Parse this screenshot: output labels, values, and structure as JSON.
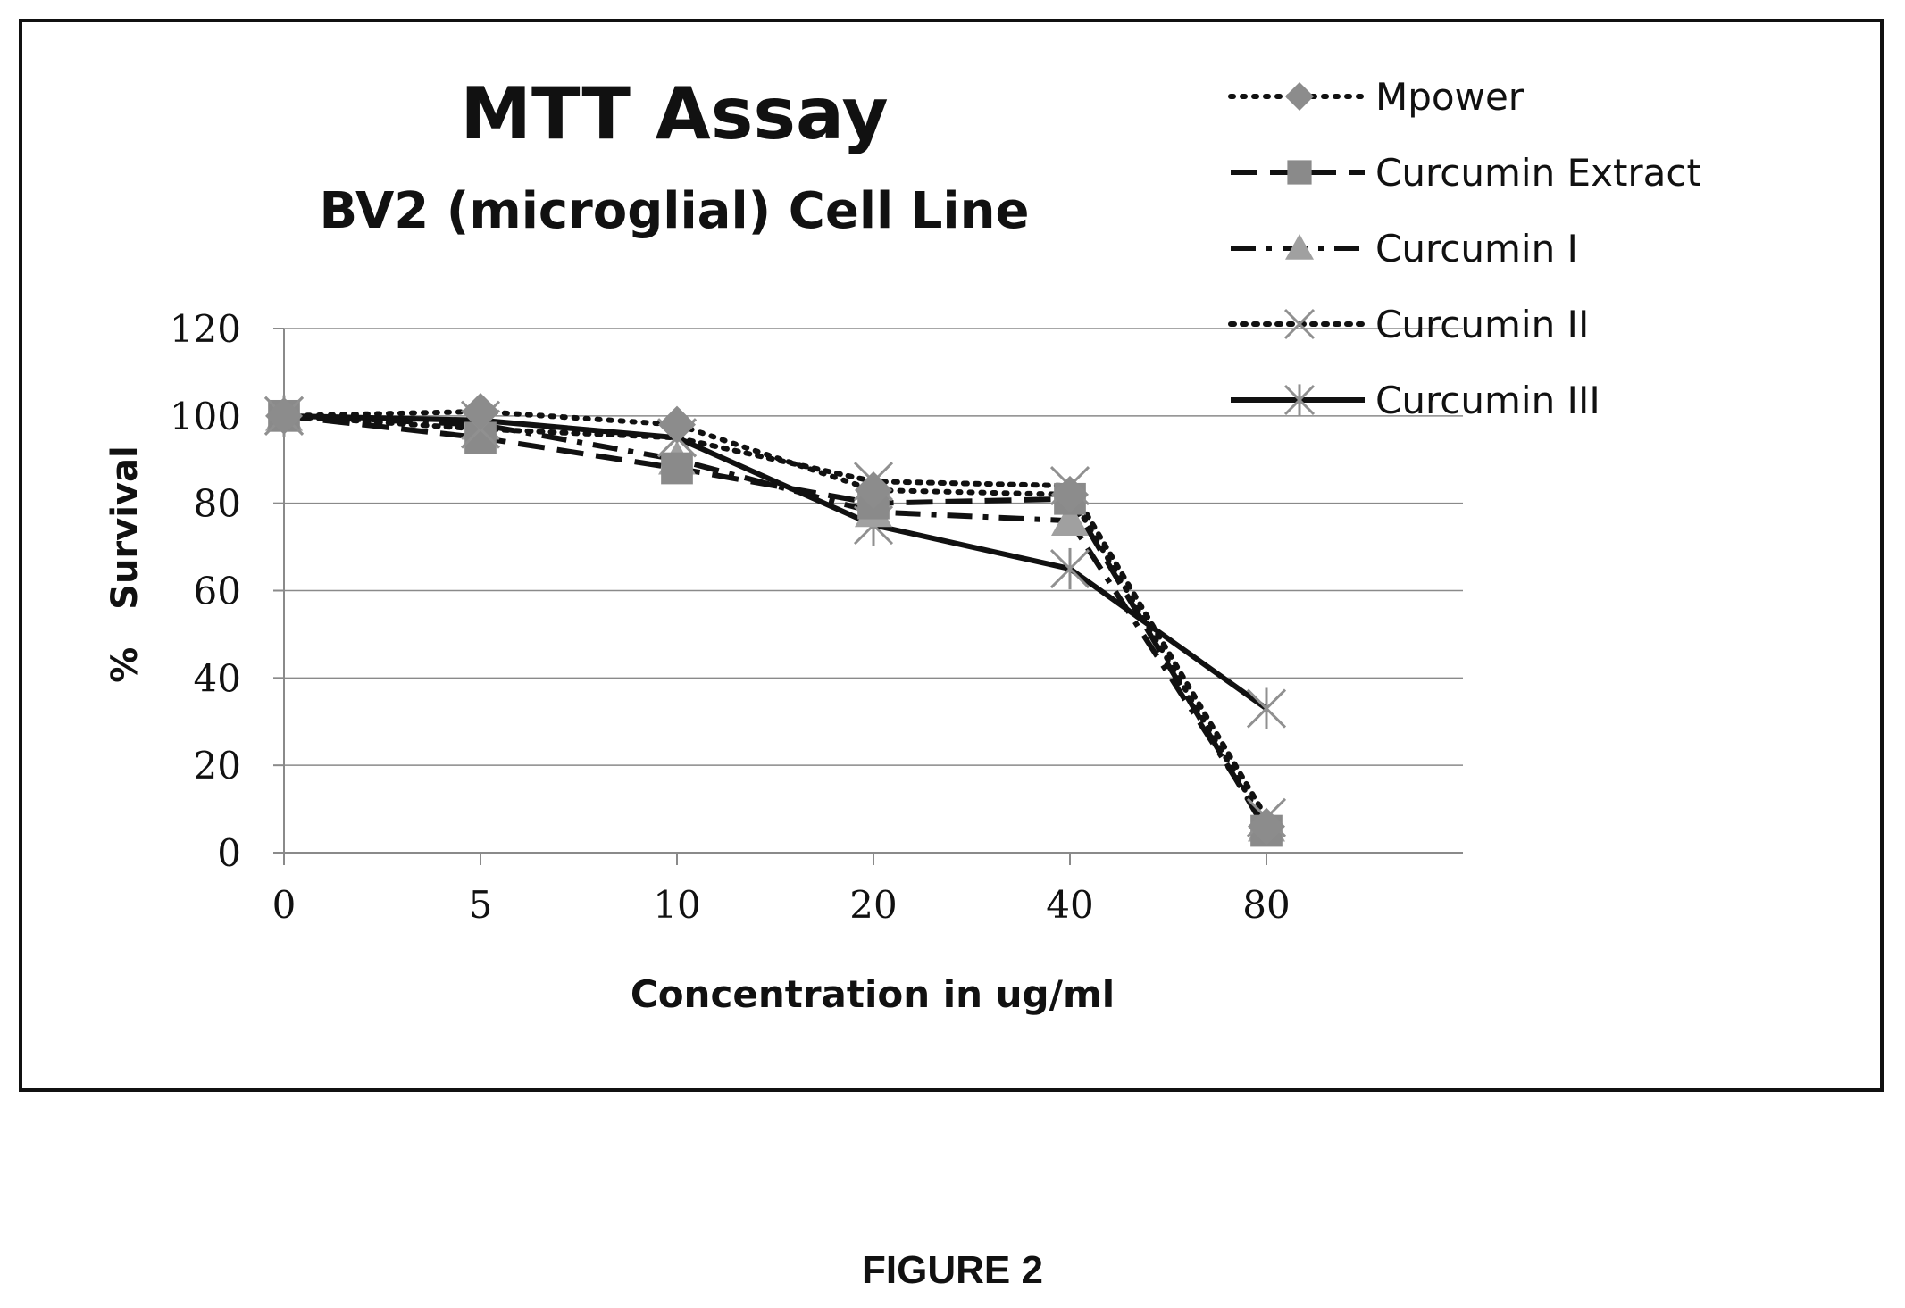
{
  "chart_data": {
    "type": "line",
    "title": "MTT Assay",
    "subtitle": "BV2 (microglial) Cell Line",
    "xlabel": "Concentration in ug/ml",
    "ylabel": "%   Survival",
    "categories": [
      "0",
      "5",
      "10",
      "20",
      "40",
      "80"
    ],
    "ylim": [
      0,
      120
    ],
    "yticks": [
      0,
      20,
      40,
      60,
      80,
      100,
      120
    ],
    "grid": true,
    "legend_position": "top-right",
    "series": [
      {
        "name": "Mpower",
        "values": [
          100,
          101,
          98,
          83,
          82,
          6
        ],
        "marker": "diamond",
        "dash": "dot",
        "color": "#8c8c8c"
      },
      {
        "name": "Curcumin Extract",
        "values": [
          100,
          95,
          88,
          80,
          81,
          5
        ],
        "marker": "square",
        "dash": "long-dash",
        "color": "#8a8a8a"
      },
      {
        "name": "Curcumin I",
        "values": [
          100,
          98,
          90,
          78,
          76,
          6
        ],
        "marker": "triangle",
        "dash": "dash-dot",
        "color": "#a0a0a0"
      },
      {
        "name": "Curcumin II",
        "values": [
          100,
          97,
          95,
          85,
          84,
          8
        ],
        "marker": "x",
        "dash": "dotted",
        "color": "#909090"
      },
      {
        "name": "Curcumin III",
        "values": [
          100,
          99,
          95,
          75,
          65,
          33
        ],
        "marker": "star",
        "dash": "solid",
        "color": "#909090"
      }
    ]
  },
  "caption": "FIGURE 2"
}
